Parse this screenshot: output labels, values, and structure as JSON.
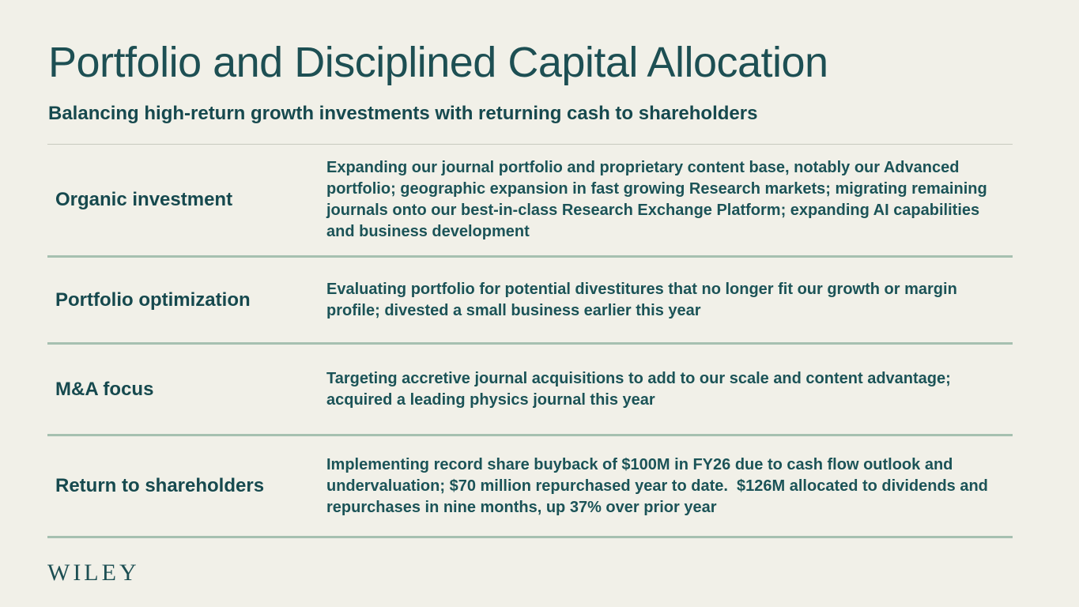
{
  "slide": {
    "title": "Portfolio and Disciplined Capital Allocation",
    "subtitle": "Balancing high-return growth investments with returning cash to shareholders",
    "logo_text": "WILEY",
    "colors": {
      "background": "#f1f0e8",
      "text_teal": "#1b4f54",
      "heading_teal": "#1d4f53",
      "row_divider": "#a6c0b0",
      "top_divider": "#c8cabf"
    },
    "rows": [
      {
        "label": "Organic investment",
        "description": "Expanding our journal portfolio and proprietary content base, notably our Advanced portfolio; geographic expansion in fast growing Research markets; migrating remaining journals onto our best-in-class Research Exchange Platform; expanding AI capabilities and business development"
      },
      {
        "label": "Portfolio optimization",
        "description": "Evaluating portfolio for potential divestitures that no longer fit our growth or margin profile; divested a small business earlier this year"
      },
      {
        "label": "M&A focus",
        "description": "Targeting accretive journal acquisitions to add to our scale and content advantage; acquired a leading physics journal this year"
      },
      {
        "label": "Return to shareholders",
        "description": "Implementing record share buyback of $100M in FY26 due to cash flow outlook and undervaluation; $70 million repurchased year to date.  $126M allocated to dividends and repurchases in nine months, up 37% over prior year"
      }
    ]
  }
}
